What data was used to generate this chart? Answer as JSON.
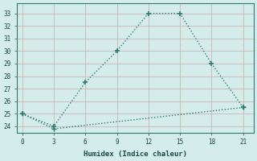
{
  "line1_x": [
    0,
    3,
    6,
    9,
    12,
    15,
    18,
    21
  ],
  "line1_y": [
    25,
    24,
    27.5,
    30,
    33,
    33,
    29,
    25.5
  ],
  "line2_x": [
    0,
    3,
    21
  ],
  "line2_y": [
    25,
    23.8,
    25.5
  ],
  "line_color": "#2e7d6e",
  "bg_color": "#d4ecea",
  "grid_color": "#c8aaaa",
  "xlabel": "Humidex (Indice chaleur)",
  "xlim": [
    -0.5,
    22
  ],
  "ylim": [
    23.5,
    33.8
  ],
  "xticks": [
    0,
    3,
    6,
    9,
    12,
    15,
    18,
    21
  ],
  "yticks": [
    24,
    25,
    26,
    27,
    28,
    29,
    30,
    31,
    32,
    33
  ],
  "marker": "P",
  "marker_size": 4,
  "line_width": 1.0
}
